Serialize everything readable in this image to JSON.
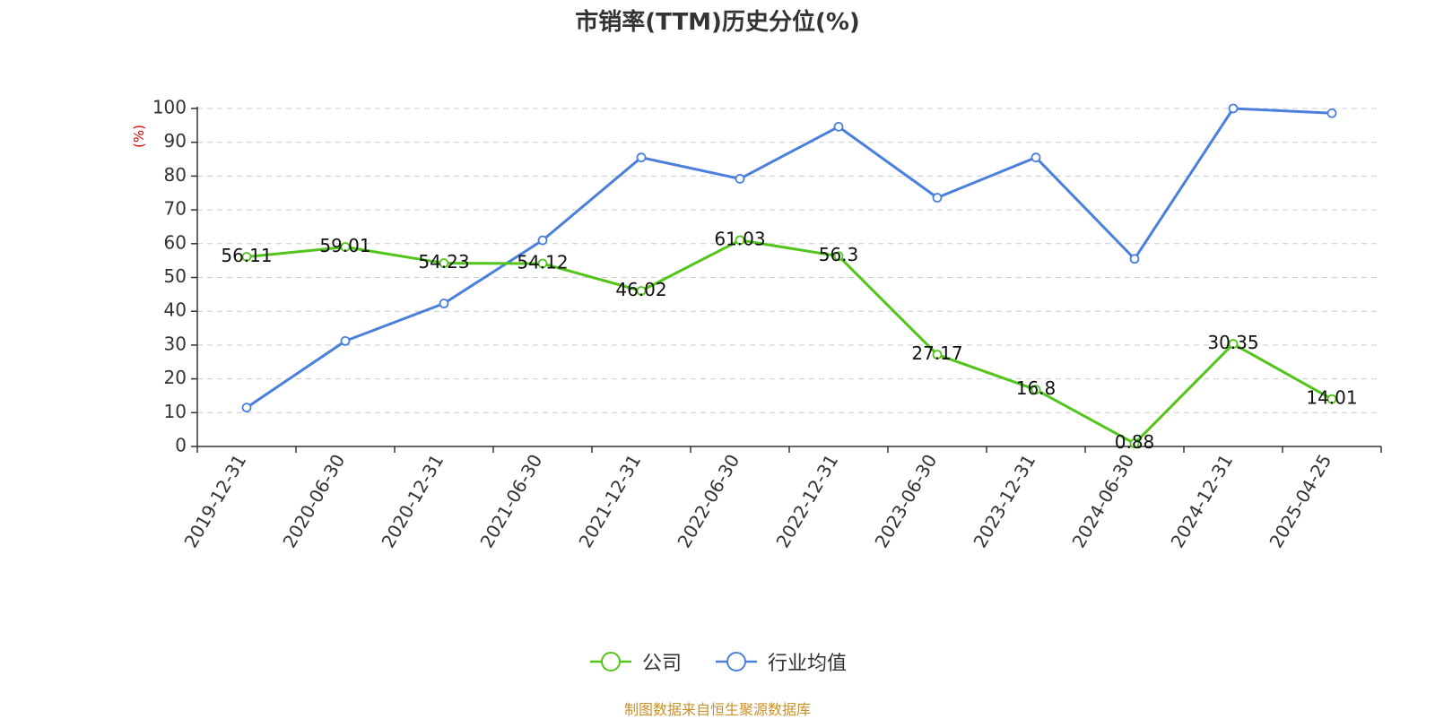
{
  "title": "市销率(TTM)历史分位(%)",
  "footer": "制图数据来自恒生聚源数据库",
  "chart_data": {
    "type": "line",
    "title": "市销率(TTM)历史分位(%)",
    "ylabel": "(%)",
    "xlabel": "",
    "ylim": [
      0,
      100
    ],
    "yticks": [
      0,
      10,
      20,
      30,
      40,
      50,
      60,
      70,
      80,
      90,
      100
    ],
    "grid": true,
    "legend_position": "bottom-center",
    "categories": [
      "2019-12-31",
      "2020-06-30",
      "2020-12-31",
      "2021-06-30",
      "2021-12-31",
      "2022-06-30",
      "2022-12-31",
      "2023-06-30",
      "2023-12-31",
      "2024-06-30",
      "2024-12-31",
      "2025-04-25"
    ],
    "series": [
      {
        "name": "公司",
        "color": "#52c41a",
        "show_labels": true,
        "values": [
          56.11,
          59.01,
          54.23,
          54.12,
          46.02,
          61.03,
          56.3,
          27.17,
          16.8,
          0.88,
          30.35,
          14.01
        ]
      },
      {
        "name": "行业均值",
        "color": "#4a7fdc",
        "show_labels": false,
        "values": [
          11.5,
          31.2,
          42.3,
          61.0,
          85.5,
          79.2,
          94.6,
          73.6,
          85.5,
          55.5,
          100,
          98.6
        ]
      }
    ]
  }
}
